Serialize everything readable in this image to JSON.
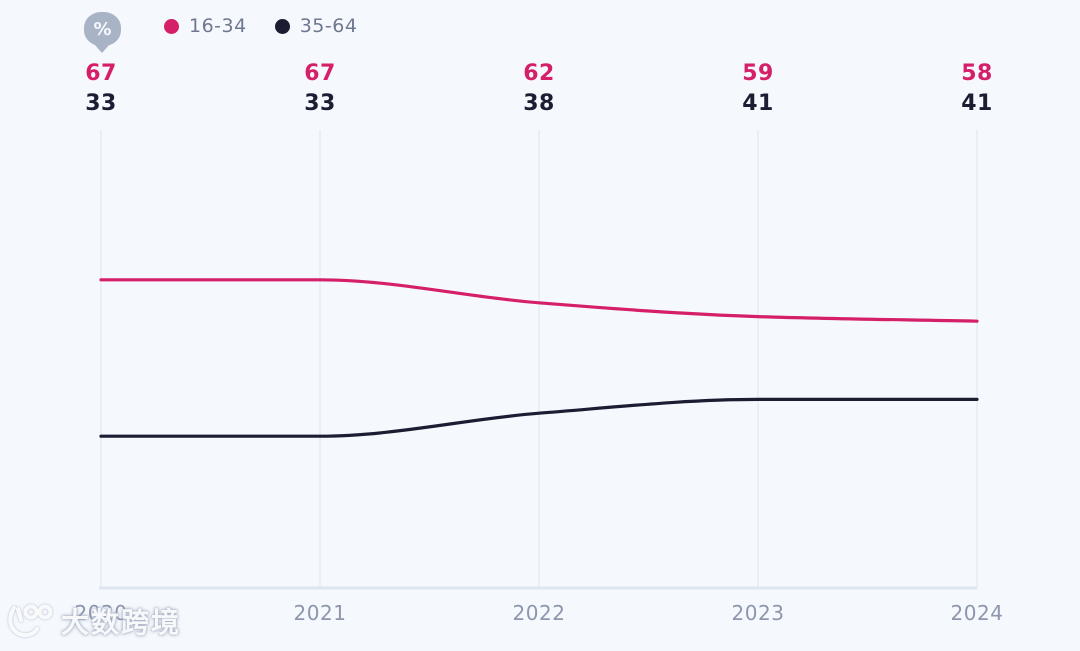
{
  "background": "#f5f8fc",
  "unit_badge": {
    "symbol": "%"
  },
  "legend": {
    "position": "top-left",
    "items": [
      {
        "label": "16-34",
        "color": "#d51f68"
      },
      {
        "label": "35-64",
        "color": "#1c1c33"
      }
    ]
  },
  "chart_data": {
    "type": "line",
    "x": [
      "2020",
      "2021",
      "2022",
      "2023",
      "2024"
    ],
    "series": [
      {
        "name": "16-34",
        "color": "#d51f68",
        "values": [
          67,
          67,
          62,
          59,
          58
        ]
      },
      {
        "name": "35-64",
        "color": "#1c1c33",
        "values": [
          33,
          33,
          38,
          41,
          41
        ]
      }
    ],
    "unit": "%",
    "ylim": [
      0,
      100
    ],
    "grid": "vertical-per-year",
    "legend_position": "top-left",
    "point_labels_position": "above-plot-area",
    "curve": "smooth-monotone"
  },
  "colors": {
    "gridline": "#e7ecf4",
    "axis_line": "#dfe5ef",
    "tick_label": "#8d96ad",
    "legend_label": "#6f7890",
    "badge": "#a9b3c6"
  },
  "watermark": {
    "logo": "100",
    "text": "大数跨境"
  }
}
